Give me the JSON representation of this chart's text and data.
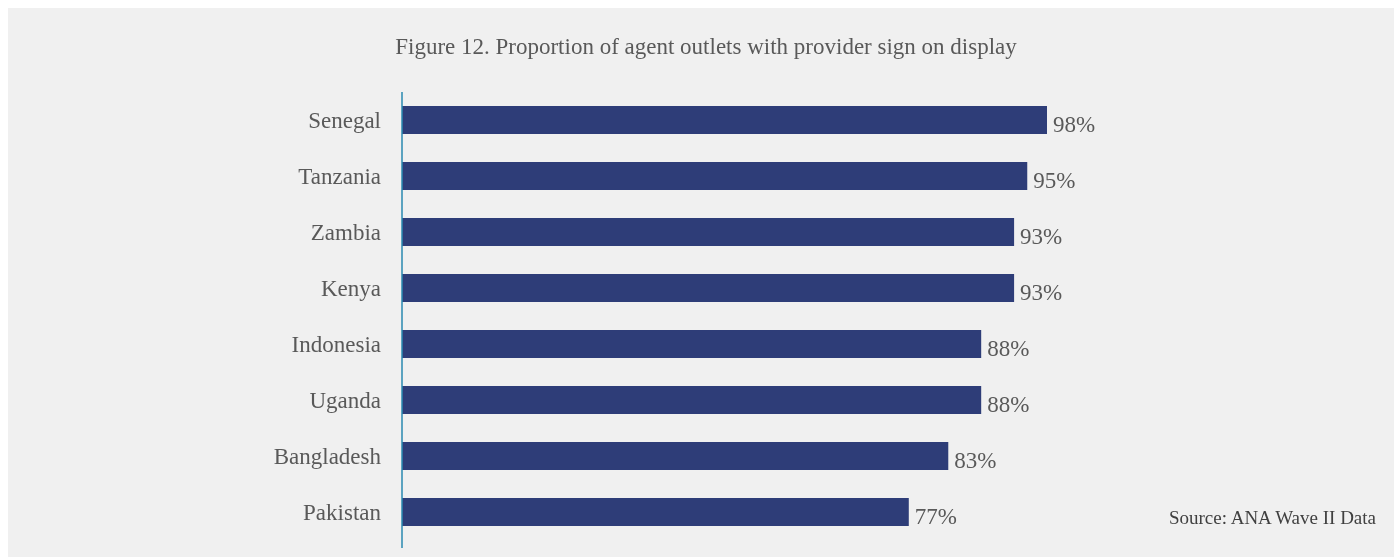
{
  "chart_data": {
    "type": "bar",
    "orientation": "horizontal",
    "relative": false,
    "title": "Figure 12. Proportion of agent outlets with provider sign on display",
    "categories": [
      "Senegal",
      "Tanzania",
      "Zambia",
      "Kenya",
      "Indonesia",
      "Uganda",
      "Bangladesh",
      "Pakistan"
    ],
    "values": [
      98,
      95,
      93,
      93,
      88,
      88,
      83,
      77
    ],
    "value_labels": [
      "98%",
      "95%",
      "93%",
      "93%",
      "88%",
      "88%",
      "83%",
      "77%"
    ],
    "color": "#2e3d78",
    "annotations": [
      "Source: ANA Wave II Data"
    ]
  }
}
